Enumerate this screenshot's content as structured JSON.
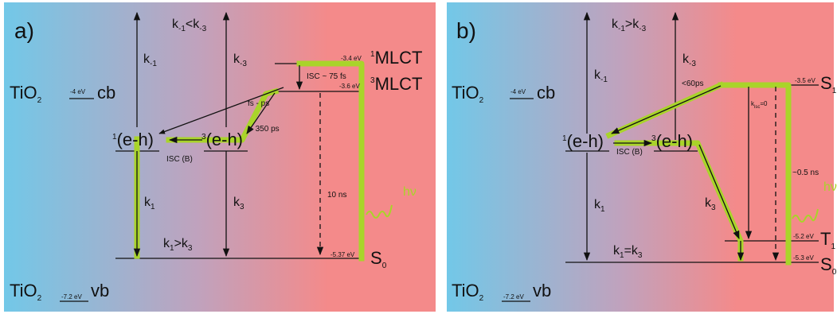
{
  "colors": {
    "background_left": "#72c8e8",
    "background_right": "#f48a8a",
    "green_pathway": "#a9d42a",
    "line": "#111111"
  },
  "panel_a": {
    "label": "a)",
    "tio2_cb": {
      "prefix": "TiO",
      "sub": "2",
      "energy": "-4 eV",
      "band": "cb"
    },
    "tio2_vb": {
      "prefix": "TiO",
      "sub": "2",
      "energy": "-7.2 eV",
      "band": "vb"
    },
    "k_minus1": {
      "base": "k",
      "sub": "-1"
    },
    "k_minus3": {
      "base": "k",
      "sub": "-3"
    },
    "k1": {
      "base": "k",
      "sub": "1"
    },
    "k3": {
      "base": "k",
      "sub": "3"
    },
    "rate_top": {
      "k": "k",
      "s1": "-1",
      "rel": "<",
      "s2": "-3"
    },
    "rate_bottom": {
      "k": "k",
      "s1": "1",
      "rel": ">",
      "s2": "3"
    },
    "singlet_eh": {
      "sup": "1",
      "label": "(e-h)"
    },
    "triplet_eh": {
      "sup": "3",
      "label": "(e-h)"
    },
    "isc_b": "ISC (B)",
    "isc_75": "ISC ~ 75 fs",
    "fs_ps": "fs - ps",
    "t350": "~ 350 ps",
    "t10ns": "10 ns",
    "hv": "hν",
    "mlct1": {
      "energy": "-3.4 eV",
      "sup": "1",
      "label": "MLCT"
    },
    "mlct3": {
      "energy": "-3.6 eV",
      "sup": "3",
      "label": "MLCT"
    },
    "s0": {
      "energy": "-5.37 eV",
      "base": "S",
      "sub": "0"
    }
  },
  "panel_b": {
    "label": "b)",
    "tio2_cb": {
      "prefix": "TiO",
      "sub": "2",
      "energy": "-4 eV",
      "band": "cb"
    },
    "tio2_vb": {
      "prefix": "TiO",
      "sub": "2",
      "energy": "-7.2 eV",
      "band": "vb"
    },
    "k_minus1": {
      "base": "k",
      "sub": "-1"
    },
    "k_minus3": {
      "base": "k",
      "sub": "-3"
    },
    "k1": {
      "base": "k",
      "sub": "1"
    },
    "k3": {
      "base": "k",
      "sub": "3"
    },
    "rate_top": {
      "k": "k",
      "s1": "-1",
      "rel": ">",
      "s2": "-3"
    },
    "rate_bottom": {
      "k": "k",
      "s1": "1",
      "rel": "=",
      "s2": "3"
    },
    "singlet_eh": {
      "sup": "1",
      "label": "(e-h)"
    },
    "triplet_eh": {
      "sup": "3",
      "label": "(e-h)"
    },
    "isc_b": "ISC (B)",
    "t60ps": "<60ps",
    "kisc": {
      "base": "k",
      "sub": "isc",
      "rest": "=0"
    },
    "t05ns": "~0.5 ns",
    "hv": "hν",
    "s1": {
      "energy": "-3.5 eV",
      "base": "S",
      "sub": "1"
    },
    "t1": {
      "energy": "-5.2 eV",
      "base": "T",
      "sub": "1"
    },
    "s0": {
      "energy": "-5.3 eV",
      "base": "S",
      "sub": "0"
    }
  }
}
